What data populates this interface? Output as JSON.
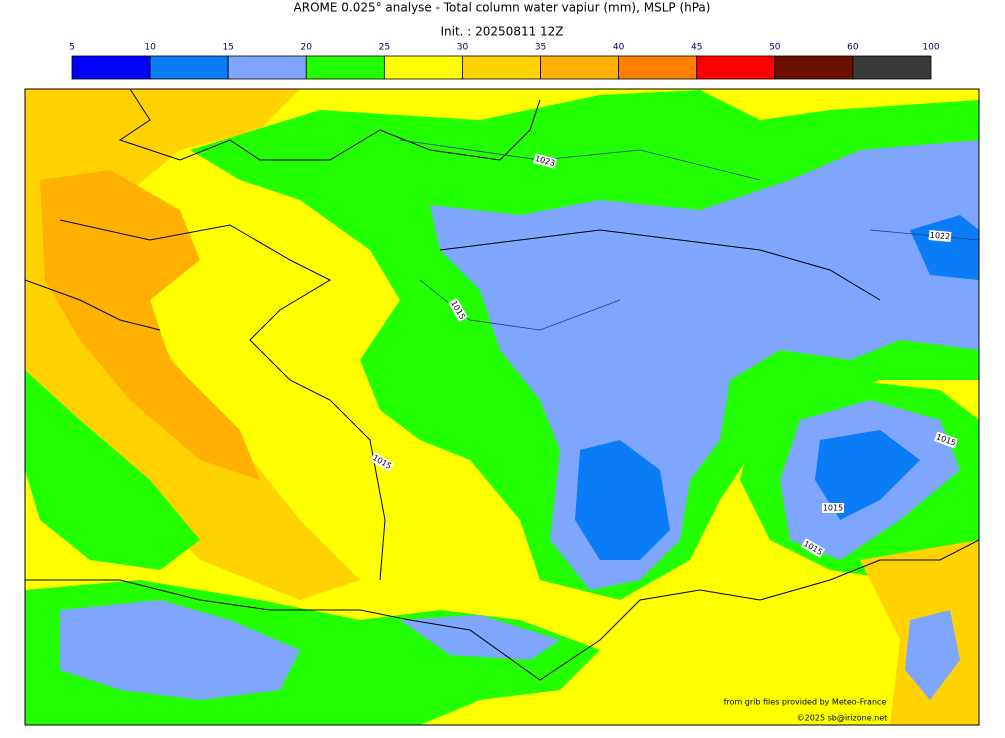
{
  "header": {
    "title": "AROME 0.025° analyse - Total column water vapiur (mm), MSLP (hPa)",
    "subtitle": "Init. : 20250811 12Z"
  },
  "colorbar": {
    "ticks": [
      5,
      10,
      15,
      20,
      25,
      30,
      35,
      40,
      45,
      50,
      60,
      100
    ],
    "colors": [
      "#0000ff",
      "#0a7cf5",
      "#7fa6ff",
      "#22ff00",
      "#ffff00",
      "#ffd200",
      "#ffb000",
      "#ff8000",
      "#ff0000",
      "#6b0f00",
      "#3a3a3a"
    ]
  },
  "map": {
    "isobar_labels": [
      "1023",
      "1015",
      "1022",
      "1015",
      "1015",
      "1015",
      "1015"
    ]
  },
  "credits": [
    "from grib files provided by Meteo-France",
    "©2025 sb@irizone.net"
  ]
}
